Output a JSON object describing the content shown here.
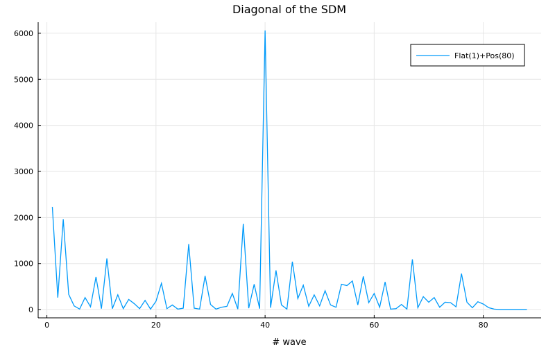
{
  "chart_data": {
    "type": "line",
    "title": "Diagonal of the SDM",
    "xlabel": "# wave",
    "ylabel": "",
    "xlim": [
      -1.6,
      90.6
    ],
    "ylim": [
      -180,
      6240
    ],
    "xticks": [
      0,
      20,
      40,
      60,
      80
    ],
    "yticks": [
      0,
      1000,
      2000,
      3000,
      4000,
      5000,
      6000
    ],
    "grid": true,
    "legend_position": "top-right",
    "series": [
      {
        "name": "Flat(1)+Pos(80)",
        "color": "#009AFA",
        "x": [
          1,
          2,
          3,
          4,
          5,
          6,
          7,
          8,
          9,
          10,
          11,
          12,
          13,
          14,
          15,
          16,
          17,
          18,
          19,
          20,
          21,
          22,
          23,
          24,
          25,
          26,
          27,
          28,
          29,
          30,
          31,
          32,
          33,
          34,
          35,
          36,
          37,
          38,
          39,
          40,
          41,
          42,
          43,
          44,
          45,
          46,
          47,
          48,
          49,
          50,
          51,
          52,
          53,
          54,
          55,
          56,
          57,
          58,
          59,
          60,
          61,
          62,
          63,
          64,
          65,
          66,
          67,
          68,
          69,
          70,
          71,
          72,
          73,
          74,
          75,
          76,
          77,
          78,
          79,
          80,
          81,
          82,
          83,
          84,
          85,
          86,
          87,
          88
        ],
        "values": [
          2230,
          260,
          1960,
          330,
          80,
          10,
          260,
          60,
          710,
          20,
          1110,
          20,
          320,
          20,
          220,
          130,
          20,
          200,
          10,
          180,
          570,
          20,
          100,
          10,
          30,
          1420,
          30,
          10,
          730,
          110,
          10,
          50,
          70,
          350,
          10,
          1860,
          30,
          550,
          20,
          6060,
          40,
          850,
          100,
          10,
          1040,
          240,
          530,
          70,
          320,
          80,
          410,
          100,
          50,
          550,
          520,
          620,
          100,
          720,
          150,
          350,
          50,
          600,
          10,
          20,
          110,
          10,
          1090,
          40,
          280,
          160,
          260,
          50,
          160,
          150,
          60,
          780,
          160,
          40,
          170,
          120,
          40,
          10,
          0,
          0,
          0,
          0,
          0,
          0
        ]
      }
    ]
  }
}
